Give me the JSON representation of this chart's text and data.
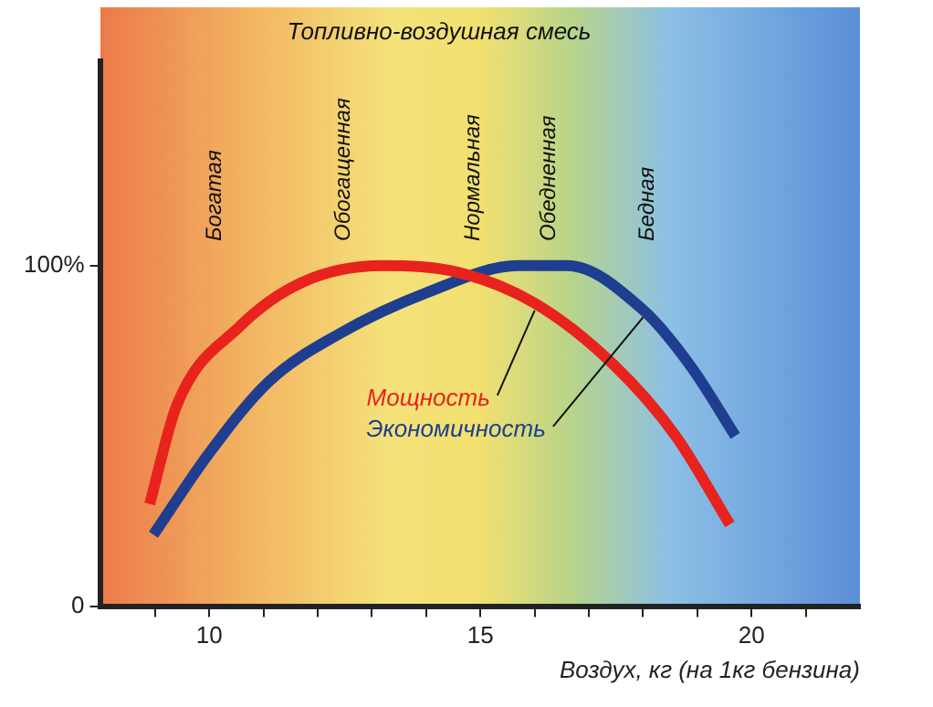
{
  "chart_data": {
    "type": "line",
    "title": "Топливно-воздушная смесь",
    "xlabel": "Воздух, кг (на 1кг бензина)",
    "xlim": [
      8,
      22
    ],
    "xticks": [
      {
        "value": 9,
        "label": null
      },
      10,
      {
        "value": 11,
        "label": null
      },
      {
        "value": 12,
        "label": null
      },
      {
        "value": 13,
        "label": null
      },
      {
        "value": 14,
        "label": null
      },
      15,
      {
        "value": 16,
        "label": null
      },
      {
        "value": 17,
        "label": null
      },
      {
        "value": 18,
        "label": null
      },
      {
        "value": 19,
        "label": null
      },
      20,
      {
        "value": 21,
        "label": null
      }
    ],
    "ylim": [
      0,
      160
    ],
    "yticks": [
      0,
      {
        "value": 100,
        "label": "100%"
      }
    ],
    "grid": false,
    "legend": false,
    "marker": "none",
    "line_style": "solid",
    "series": [
      {
        "name": "Мощность",
        "color": "#e8231e",
        "x": [
          8.9,
          9.4,
          10.55,
          11.7,
          13.2,
          14.6,
          16.0,
          17.45,
          18.6,
          19.6
        ],
        "values": [
          30,
          59,
          82,
          95,
          100,
          98,
          89,
          71,
          50,
          24
        ]
      },
      {
        "name": "Экономичность",
        "color": "#1f3e8f",
        "x": [
          8.97,
          10.0,
          11.1,
          12.4,
          14.0,
          15.7,
          16.6,
          18.0,
          18.9,
          19.7
        ],
        "values": [
          21,
          45,
          66,
          80,
          92,
          100,
          100,
          87,
          70,
          50
        ]
      }
    ],
    "annotations": [
      "Богатая",
      "Обогащенная",
      "Нормальная",
      "Обедненная",
      "Бедная"
    ]
  }
}
